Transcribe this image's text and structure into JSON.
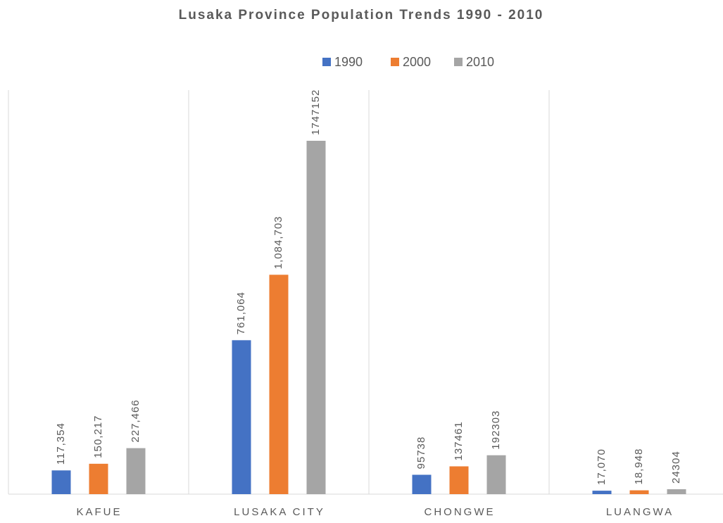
{
  "chart_data": {
    "type": "bar",
    "title": "Lusaka Province Population Trends 1990 - 2010",
    "categories": [
      "KAFUE",
      "LUSAKA CITY",
      "CHONGWE",
      "LUANGWA"
    ],
    "series": [
      {
        "name": "1990",
        "color": "#4472c4",
        "values": [
          117354,
          761064,
          95738,
          17070
        ],
        "value_labels": [
          "117,354",
          "761,064",
          "95738",
          "17,070"
        ]
      },
      {
        "name": "2000",
        "color": "#ed7d31",
        "values": [
          150217,
          1084703,
          137461,
          18948
        ],
        "value_labels": [
          "150,217",
          "1,084,703",
          "137461",
          "18,948"
        ]
      },
      {
        "name": "2010",
        "color": "#a5a5a5",
        "values": [
          227466,
          1747152,
          192303,
          24304
        ],
        "value_labels": [
          "227,466",
          "1747152",
          "192303",
          "24304"
        ]
      }
    ],
    "legend": "top",
    "grid": false
  }
}
